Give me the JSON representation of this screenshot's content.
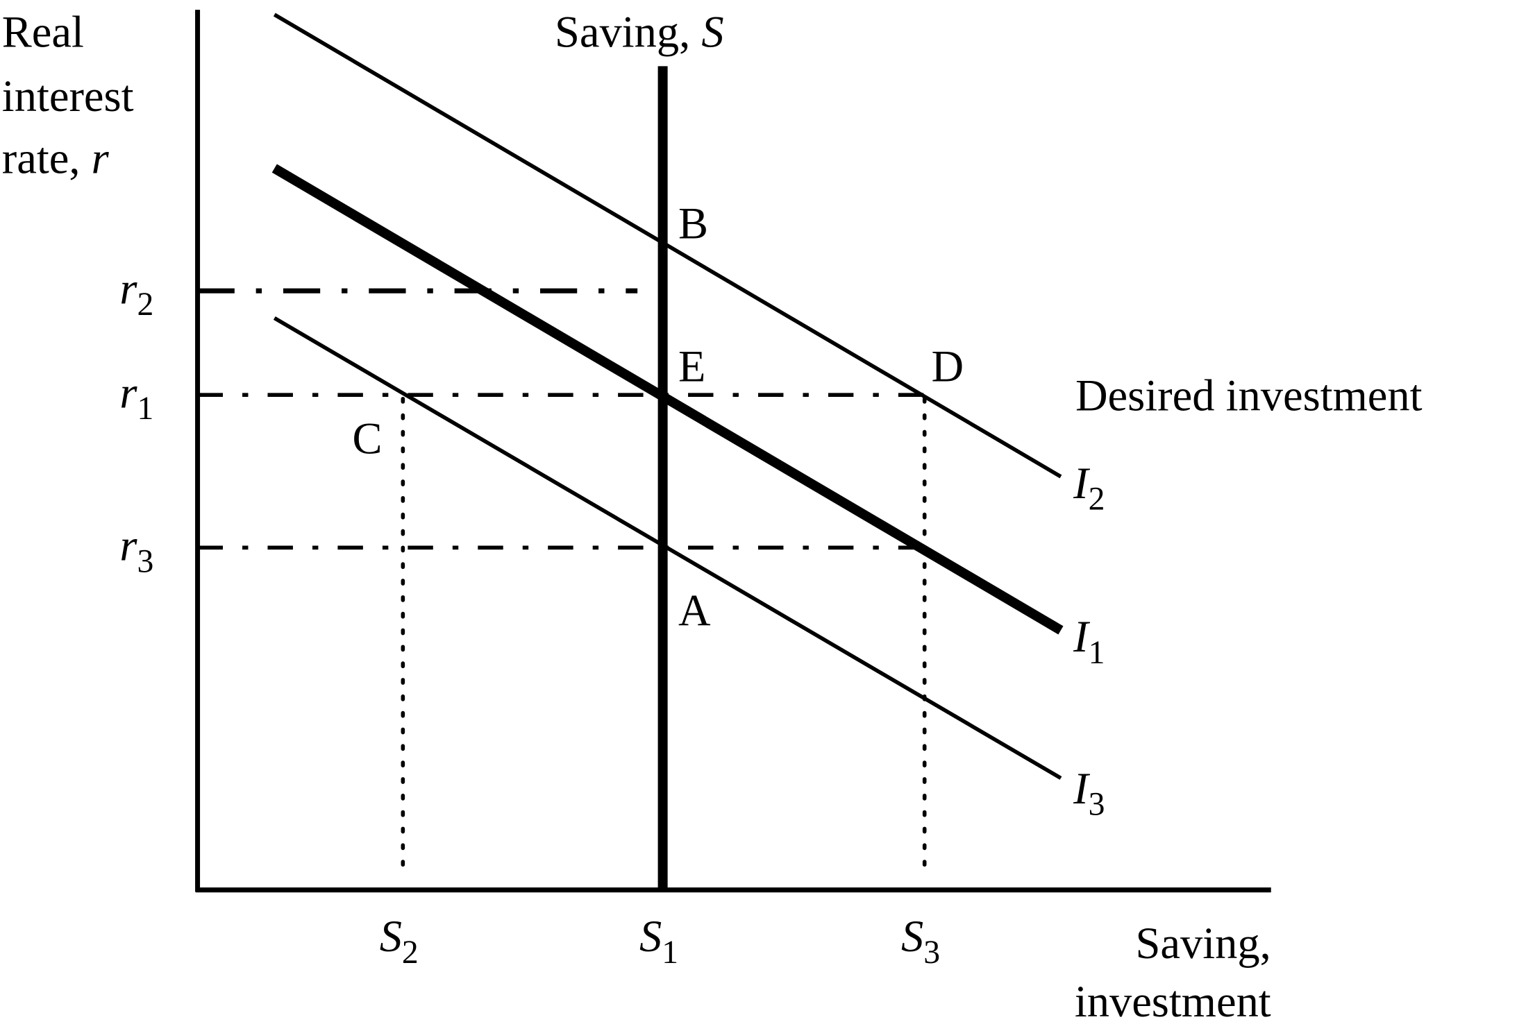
{
  "axes": {
    "y_label_lines": [
      "Real",
      "interest"
    ],
    "y_label_rate": "rate, ",
    "y_label_var": "r",
    "x_label_lines": [
      "Saving,",
      "investment"
    ]
  },
  "saving_curve": {
    "label": "Saving, ",
    "var": "S"
  },
  "desired_investment_label": "Desired investment",
  "investment_curves": [
    {
      "var": "I",
      "sub": "2"
    },
    {
      "var": "I",
      "sub": "1"
    },
    {
      "var": "I",
      "sub": "3"
    }
  ],
  "rate_ticks": [
    {
      "var": "r",
      "sub": "2"
    },
    {
      "var": "r",
      "sub": "1"
    },
    {
      "var": "r",
      "sub": "3"
    }
  ],
  "saving_ticks": [
    {
      "var": "S",
      "sub": "2"
    },
    {
      "var": "S",
      "sub": "1"
    },
    {
      "var": "S",
      "sub": "3"
    }
  ],
  "points": {
    "A": "A",
    "B": "B",
    "C": "C",
    "D": "D",
    "E": "E"
  },
  "colors": {
    "ink": "#000000",
    "background": "#ffffff"
  }
}
